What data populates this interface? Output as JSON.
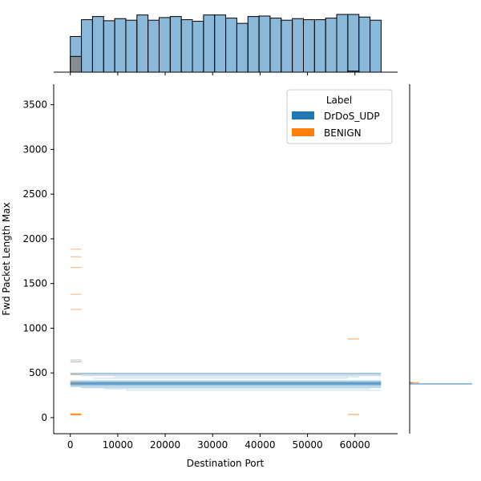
{
  "chart_data": {
    "type": "jointplot-histogram",
    "xlabel": "Destination Port",
    "ylabel": "Fwd Packet Length Max",
    "xlim": [
      -3500,
      69000
    ],
    "ylim": [
      -180,
      3730
    ],
    "x_ticks": [
      0,
      10000,
      20000,
      30000,
      40000,
      50000,
      60000
    ],
    "x_tick_labels": [
      "0",
      "10000",
      "20000",
      "30000",
      "40000",
      "50000",
      "60000"
    ],
    "y_ticks": [
      0,
      500,
      1000,
      1500,
      2000,
      2500,
      3000,
      3500
    ],
    "y_tick_labels": [
      "0",
      "500",
      "1000",
      "1500",
      "2000",
      "2500",
      "3000",
      "3500"
    ],
    "legend": {
      "title": "Label",
      "placement": "upper right",
      "entries": [
        {
          "label": "DrDoS_UDP",
          "color": "#1f77b4"
        },
        {
          "label": "BENIGN",
          "color": "#ff7f0e"
        }
      ]
    },
    "marginal_x": {
      "bin_width": 2340,
      "bin_starts": [
        0,
        2340,
        4680,
        7020,
        9360,
        11700,
        14040,
        16380,
        18720,
        21060,
        23400,
        25740,
        28080,
        30420,
        32760,
        35100,
        37440,
        39780,
        42120,
        44460,
        46800,
        49140,
        51480,
        53820,
        56160,
        58500,
        60840,
        63180
      ],
      "series": [
        {
          "name": "DrDoS_UDP",
          "color": "#1f77b4",
          "values": [
            0.68,
            1.0,
            1.06,
            0.98,
            1.02,
            0.99,
            1.09,
            0.99,
            1.04,
            1.06,
            1.0,
            0.97,
            1.09,
            1.09,
            1.03,
            0.93,
            1.06,
            1.07,
            1.03,
            0.99,
            1.02,
            1.0,
            1.0,
            1.03,
            1.1,
            1.1,
            1.05,
            0.99
          ]
        },
        {
          "name": "BENIGN",
          "color": "#ff7f0e",
          "values": [
            0.3,
            0,
            0,
            0,
            0,
            0,
            0,
            0,
            0,
            0,
            0,
            0,
            0,
            0,
            0,
            0,
            0,
            0,
            0,
            0,
            0,
            0,
            0,
            0,
            0,
            0.02,
            0,
            0
          ]
        }
      ]
    },
    "marginal_y": {
      "series": [
        {
          "name": "DrDoS_UDP",
          "color": "#1f77b4",
          "bins": [
            {
              "y0": 370,
              "y1": 384,
              "value": 1.0
            },
            {
              "y0": 384,
              "y1": 398,
              "value": 0.05
            }
          ]
        },
        {
          "name": "BENIGN",
          "color": "#ff7f0e",
          "bins": [
            {
              "y0": 384,
              "y1": 398,
              "value": 0.15
            }
          ]
        }
      ]
    },
    "joint_hist": {
      "bin_width_x": 2340,
      "bin_height_y": 10,
      "series": [
        {
          "name": "DrDoS_UDP",
          "color": "#1f77b4",
          "y_levels": [
            {
              "y": 495,
              "alpha": 0.5,
              "x_ranges": [
                [
                  0,
                  65500
                ]
              ]
            },
            {
              "y": 484,
              "alpha": 0.35,
              "x_ranges": [
                [
                  0,
                  65500
                ]
              ]
            },
            {
              "y": 470,
              "alpha": 0.25,
              "x_ranges": [
                [
                  2340,
                  65500
                ]
              ]
            },
            {
              "y": 455,
              "alpha": 0.2,
              "x_ranges": [
                [
                  9360,
                  60840
                ]
              ]
            },
            {
              "y": 440,
              "alpha": 0.2,
              "x_ranges": [
                [
                  4680,
                  58500
                ]
              ]
            },
            {
              "y": 412,
              "alpha": 0.35,
              "x_ranges": [
                [
                  0,
                  65500
                ]
              ]
            },
            {
              "y": 400,
              "alpha": 0.5,
              "x_ranges": [
                [
                  0,
                  65500
                ]
              ]
            },
            {
              "y": 390,
              "alpha": 0.7,
              "x_ranges": [
                [
                  0,
                  65500
                ]
              ]
            },
            {
              "y": 378,
              "alpha": 0.9,
              "x_ranges": [
                [
                  0,
                  65500
                ]
              ]
            },
            {
              "y": 366,
              "alpha": 0.6,
              "x_ranges": [
                [
                  0,
                  65500
                ]
              ]
            },
            {
              "y": 350,
              "alpha": 0.45,
              "x_ranges": [
                [
                  0,
                  65500
                ]
              ]
            },
            {
              "y": 336,
              "alpha": 0.3,
              "x_ranges": [
                [
                  2340,
                  65500
                ]
              ]
            },
            {
              "y": 322,
              "alpha": 0.2,
              "x_ranges": [
                [
                  7020,
                  63180
                ]
              ]
            },
            {
              "y": 305,
              "alpha": 0.2,
              "x_ranges": [
                [
                  11700,
                  65500
                ]
              ]
            },
            {
              "y": 645,
              "alpha": 0.35,
              "x_ranges": [
                [
                  0,
                  2340
                ]
              ]
            },
            {
              "y": 625,
              "alpha": 0.3,
              "x_ranges": [
                [
                  0,
                  2340
                ]
              ]
            }
          ]
        },
        {
          "name": "BENIGN",
          "color": "#ff7f0e",
          "y_levels": [
            {
              "y": 1885,
              "alpha": 0.5,
              "x_ranges": [
                [
                  0,
                  2340
                ]
              ]
            },
            {
              "y": 1800,
              "alpha": 0.5,
              "x_ranges": [
                [
                  0,
                  2340
                ]
              ]
            },
            {
              "y": 1680,
              "alpha": 0.5,
              "x_ranges": [
                [
                  0,
                  2340
                ]
              ]
            },
            {
              "y": 1380,
              "alpha": 0.5,
              "x_ranges": [
                [
                  0,
                  2340
                ]
              ]
            },
            {
              "y": 1210,
              "alpha": 0.5,
              "x_ranges": [
                [
                  0,
                  2340
                ]
              ]
            },
            {
              "y": 625,
              "alpha": 0.35,
              "x_ranges": [
                [
                  0,
                  2340
                ]
              ]
            },
            {
              "y": 480,
              "alpha": 0.4,
              "x_ranges": [
                [
                  0,
                  2340
                ]
              ]
            },
            {
              "y": 388,
              "alpha": 0.4,
              "x_ranges": [
                [
                  0,
                  2340
                ]
              ]
            },
            {
              "y": 42,
              "alpha": 0.85,
              "x_ranges": [
                [
                  0,
                  2340
                ]
              ]
            },
            {
              "y": 32,
              "alpha": 0.85,
              "x_ranges": [
                [
                  0,
                  2340
                ]
              ]
            },
            {
              "y": 880,
              "alpha": 0.6,
              "x_ranges": [
                [
                  58500,
                  60840
                ]
              ]
            },
            {
              "y": 36,
              "alpha": 0.7,
              "x_ranges": [
                [
                  58500,
                  60840
                ]
              ]
            }
          ]
        }
      ]
    }
  }
}
